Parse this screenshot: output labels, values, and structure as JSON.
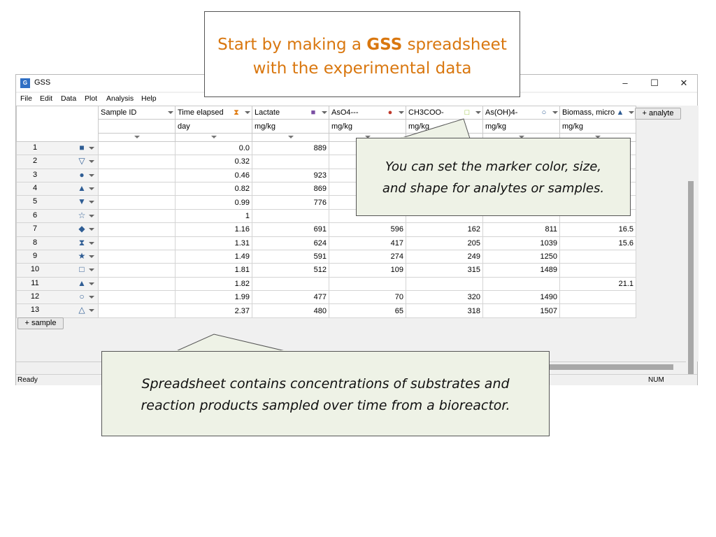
{
  "title_box": {
    "prefix": "Start by making a ",
    "bold": "GSS",
    "suffix": " spreadsheet",
    "line2": "with the experimental data"
  },
  "window": {
    "title": "GSS",
    "app_icon": "G",
    "controls": {
      "minimize": "–",
      "maximize": "☐",
      "close": "✕"
    },
    "menu": [
      "File",
      "Edit",
      "Data",
      "Plot",
      "Analysis",
      "Help"
    ]
  },
  "columns": [
    {
      "label": "Sample ID",
      "unit": "",
      "marker": "",
      "marker_color": ""
    },
    {
      "label": "Time elapsed",
      "unit": "day",
      "marker": "⧗",
      "marker_color": "#e07b10"
    },
    {
      "label": "Lactate",
      "unit": "mg/kg",
      "marker": "■",
      "marker_color": "#7a4fa3"
    },
    {
      "label": "AsO4---",
      "unit": "mg/kg",
      "marker": "●",
      "marker_color": "#c0392b"
    },
    {
      "label": "CH3COO-",
      "unit": "mg/kg",
      "marker": "□",
      "marker_color": "#8fbf2f"
    },
    {
      "label": "As(OH)4-",
      "unit": "mg/kg",
      "marker": "○",
      "marker_color": "#2f5d94"
    },
    {
      "label": "Biomass, micro",
      "unit": "mg/kg",
      "marker": "▲",
      "marker_color": "#2f5d94"
    }
  ],
  "rows": [
    {
      "n": "1",
      "marker": "■",
      "cells": [
        "",
        "0.0",
        "889",
        "",
        "",
        "",
        ""
      ]
    },
    {
      "n": "2",
      "marker": "▽",
      "cells": [
        "",
        "0.32",
        "",
        "",
        "",
        "",
        ""
      ]
    },
    {
      "n": "3",
      "marker": "●",
      "cells": [
        "",
        "0.46",
        "923",
        "",
        "",
        "",
        ""
      ]
    },
    {
      "n": "4",
      "marker": "▲",
      "cells": [
        "",
        "0.82",
        "869",
        "",
        "",
        "",
        ""
      ]
    },
    {
      "n": "5",
      "marker": "▼",
      "cells": [
        "",
        "0.99",
        "776",
        "",
        "",
        "",
        ""
      ]
    },
    {
      "n": "6",
      "marker": "☆",
      "cells": [
        "",
        "1",
        "",
        "",
        "",
        "",
        ""
      ]
    },
    {
      "n": "7",
      "marker": "◆",
      "cells": [
        "",
        "1.16",
        "691",
        "596",
        "162",
        "811",
        "16.5"
      ]
    },
    {
      "n": "8",
      "marker": "⧗",
      "cells": [
        "",
        "1.31",
        "624",
        "417",
        "205",
        "1039",
        "15.6"
      ]
    },
    {
      "n": "9",
      "marker": "★",
      "cells": [
        "",
        "1.49",
        "591",
        "274",
        "249",
        "1250",
        ""
      ]
    },
    {
      "n": "10",
      "marker": "□",
      "cells": [
        "",
        "1.81",
        "512",
        "109",
        "315",
        "1489",
        ""
      ]
    },
    {
      "n": "11",
      "marker": "▲",
      "cells": [
        "",
        "1.82",
        "",
        "",
        "",
        "",
        "21.1"
      ]
    },
    {
      "n": "12",
      "marker": "○",
      "cells": [
        "",
        "1.99",
        "477",
        "70",
        "320",
        "1490",
        ""
      ]
    },
    {
      "n": "13",
      "marker": "△",
      "cells": [
        "",
        "2.37",
        "480",
        "65",
        "318",
        "1507",
        ""
      ]
    }
  ],
  "buttons": {
    "add_analyte": "+ analyte",
    "add_sample": "+ sample"
  },
  "status": {
    "left": "Ready",
    "right": "NUM"
  },
  "callouts": {
    "marker": {
      "line1": "You can set the marker color, size,",
      "line2": "and shape for analytes or samples."
    },
    "spreadsheet": {
      "line1": "Spreadsheet contains concentrations of substrates and",
      "line2": "reaction products sampled over time from a bioreactor."
    }
  }
}
